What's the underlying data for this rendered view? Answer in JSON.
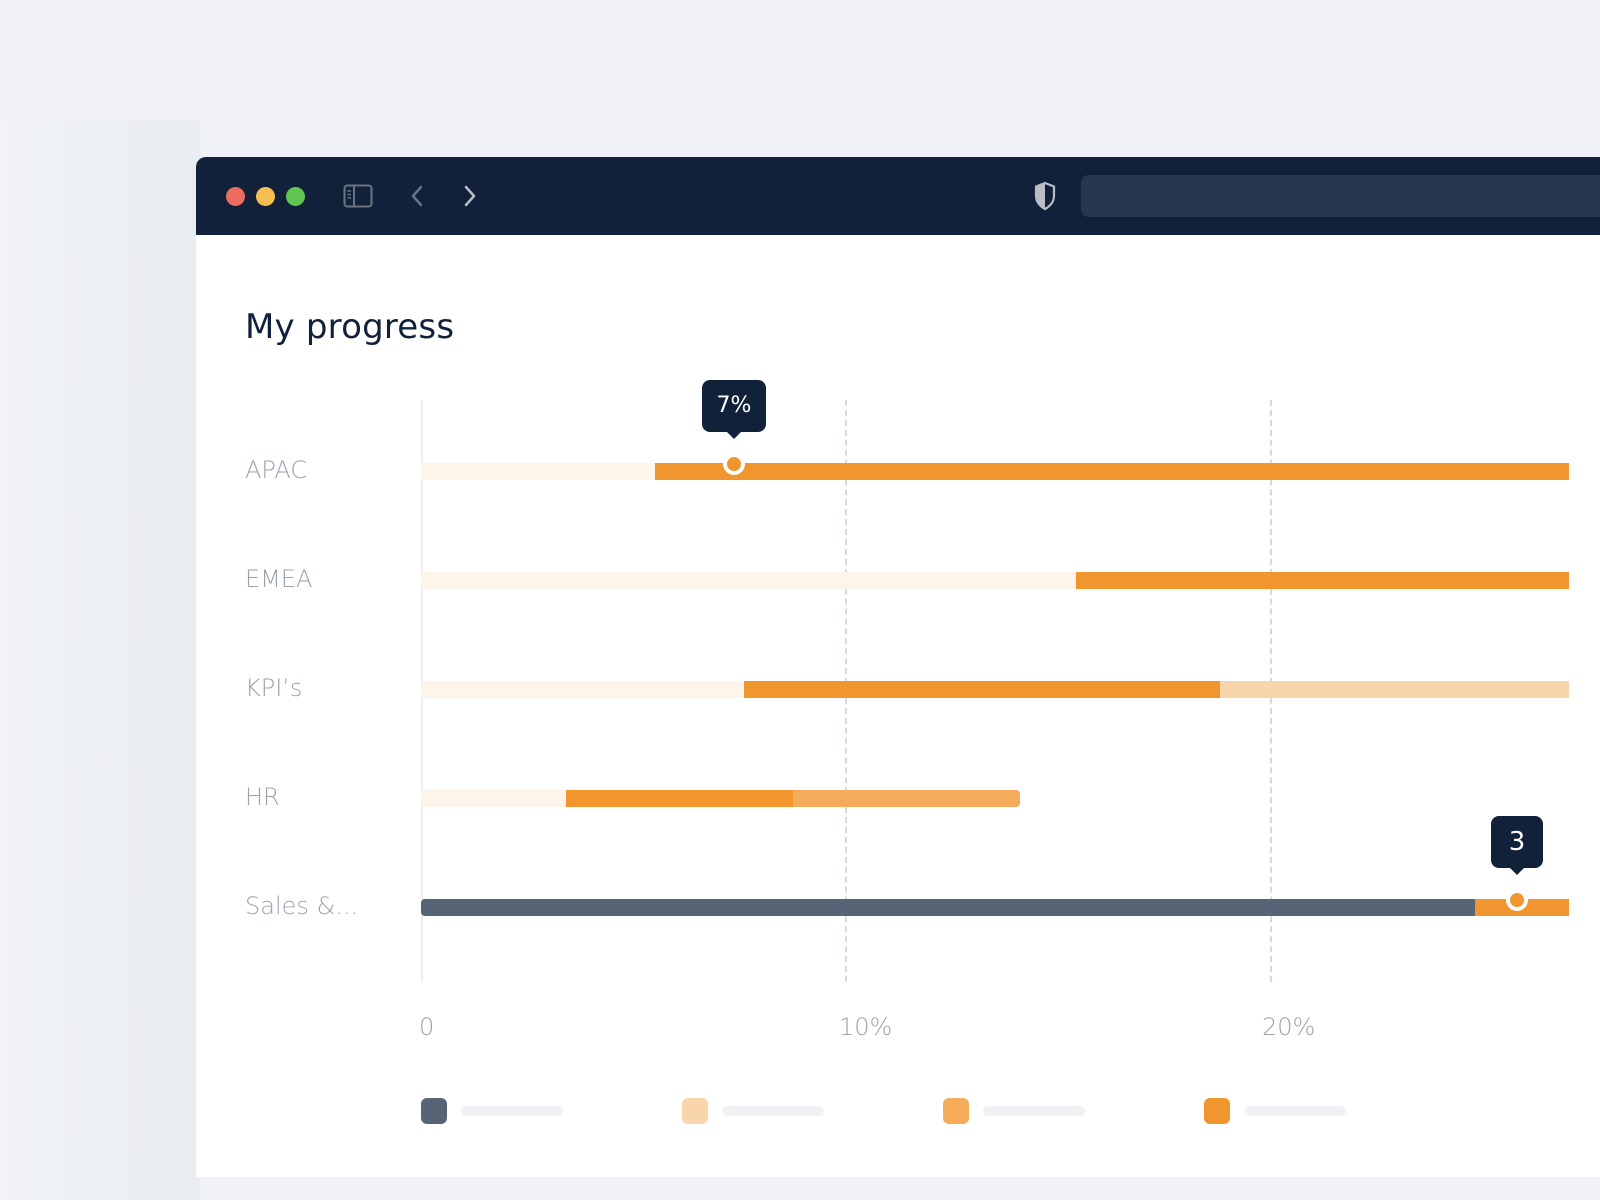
{
  "browser": {
    "controls": [
      "close",
      "minimize",
      "maximize"
    ],
    "icons": {
      "sidebar": "sidebar-toggle-icon",
      "back": "chevron-left-icon",
      "forward": "chevron-right-icon",
      "privacy": "shield-icon"
    },
    "address_bar": {
      "value": ""
    }
  },
  "page": {
    "title": "My progress"
  },
  "colors": {
    "track": "#fdf4ea",
    "orange": "#f1962e",
    "mid_orange": "#f4ac5b",
    "peach": "#f8d5ab",
    "slate": "#566475",
    "tooltip_bg": "#11213a",
    "titlebar": "#11213a"
  },
  "chart_data": {
    "type": "bar",
    "orientation": "horizontal-stacked",
    "title": "My progress",
    "xlabel": "",
    "ylabel": "",
    "xlim": [
      0,
      27
    ],
    "x_ticks": [
      "0",
      "10%",
      "20%"
    ],
    "x_tick_values": [
      0,
      10,
      20
    ],
    "grid": "vertical dashed at 10% and 20%",
    "categories": [
      "APAC",
      "EMEA",
      "KPI’s",
      "HR",
      "Sales &..."
    ],
    "rows": [
      {
        "label": "APAC",
        "segments": [
          {
            "from": 0,
            "to": 5.5,
            "color": "#fdf4ea"
          },
          {
            "from": 5.5,
            "to": 27,
            "color": "#f1962e"
          }
        ],
        "marker": {
          "at": 7.4,
          "tooltip": "7%"
        }
      },
      {
        "label": "EMEA",
        "segments": [
          {
            "from": 0,
            "to": 15.4,
            "color": "#fdf4ea"
          },
          {
            "from": 15.4,
            "to": 27,
            "color": "#f1962e"
          }
        ]
      },
      {
        "label": "KPI’s",
        "segments": [
          {
            "from": 0,
            "to": 7.6,
            "color": "#fdf4ea"
          },
          {
            "from": 7.6,
            "to": 18.8,
            "color": "#f1962e"
          },
          {
            "from": 18.8,
            "to": 27,
            "color": "#f8d5ab"
          }
        ]
      },
      {
        "label": "HR",
        "segments": [
          {
            "from": 0,
            "to": 3.4,
            "color": "#fdf4ea"
          },
          {
            "from": 3.4,
            "to": 8.75,
            "color": "#f1962e"
          },
          {
            "from": 8.75,
            "to": 14.1,
            "color": "#f4ac5b"
          }
        ]
      },
      {
        "label": "Sales &...",
        "segments": [
          {
            "from": 0,
            "to": 24.8,
            "color": "#566475"
          },
          {
            "from": 24.8,
            "to": 27,
            "color": "#f1962e"
          }
        ],
        "marker": {
          "at": 25.8,
          "tooltip": "3"
        }
      }
    ],
    "legend": {
      "position": "bottom",
      "entries": [
        {
          "label": "",
          "color": "#566475"
        },
        {
          "label": "",
          "color": "#f8d5ab"
        },
        {
          "label": "",
          "color": "#f4ac5b"
        },
        {
          "label": "",
          "color": "#f1962e"
        }
      ]
    }
  }
}
